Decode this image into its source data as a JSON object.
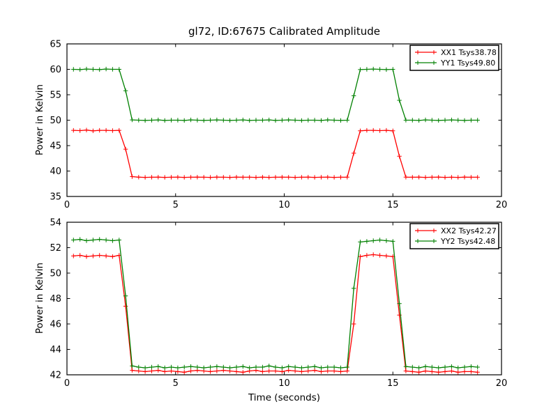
{
  "figure": {
    "background": "#ffffff",
    "frame_color": "#000000",
    "marker": "+",
    "colors": {
      "xx": "#ff0000",
      "yy": "#008000"
    }
  },
  "chart_data": [
    {
      "type": "line",
      "title": "gl72, ID:67675 Calibrated Amplitude",
      "xlabel": "",
      "ylabel": "Power in Kelvin",
      "xlim": [
        0,
        20
      ],
      "ylim": [
        35,
        65
      ],
      "xticks": [
        0,
        5,
        10,
        15,
        20
      ],
      "yticks": [
        35,
        40,
        45,
        50,
        55,
        60,
        65
      ],
      "grid": false,
      "legend_position": "upper right",
      "series": [
        {
          "id": "xx1",
          "name": "XX1 Tsys38.78",
          "color": "#ff0000",
          "marker": "+",
          "x": [
            0.3,
            0.6,
            0.9,
            1.2,
            1.5,
            1.8,
            2.1,
            2.4,
            2.7,
            3.0,
            3.3,
            3.6,
            3.9,
            4.2,
            4.5,
            4.8,
            5.1,
            5.4,
            5.7,
            6.0,
            6.3,
            6.6,
            6.9,
            7.2,
            7.5,
            7.8,
            8.1,
            8.4,
            8.7,
            9.0,
            9.3,
            9.6,
            9.9,
            10.2,
            10.5,
            10.8,
            11.1,
            11.4,
            11.7,
            12.0,
            12.3,
            12.6,
            12.9,
            13.2,
            13.5,
            13.8,
            14.1,
            14.4,
            14.7,
            15.0,
            15.3,
            15.6,
            15.9,
            16.2,
            16.5,
            16.8,
            17.1,
            17.4,
            17.7,
            18.0,
            18.3,
            18.6,
            18.9
          ],
          "y": [
            48.0,
            47.95,
            48.05,
            47.9,
            48.0,
            48.0,
            47.95,
            48.0,
            44.3,
            38.9,
            38.8,
            38.75,
            38.78,
            38.8,
            38.76,
            38.78,
            38.8,
            38.75,
            38.78,
            38.8,
            38.78,
            38.76,
            38.8,
            38.78,
            38.75,
            38.8,
            38.78,
            38.78,
            38.76,
            38.8,
            38.75,
            38.78,
            38.8,
            38.78,
            38.76,
            38.78,
            38.8,
            38.75,
            38.78,
            38.8,
            38.76,
            38.78,
            38.8,
            43.5,
            47.9,
            48.0,
            48.0,
            47.95,
            48.0,
            47.9,
            42.9,
            38.8,
            38.78,
            38.8,
            38.75,
            38.78,
            38.8,
            38.76,
            38.78,
            38.75,
            38.8,
            38.78,
            38.78
          ]
        },
        {
          "id": "yy1",
          "name": "YY1 Tsys49.80",
          "color": "#008000",
          "marker": "+",
          "x": [
            0.3,
            0.6,
            0.9,
            1.2,
            1.5,
            1.8,
            2.1,
            2.4,
            2.7,
            3.0,
            3.3,
            3.6,
            3.9,
            4.2,
            4.5,
            4.8,
            5.1,
            5.4,
            5.7,
            6.0,
            6.3,
            6.6,
            6.9,
            7.2,
            7.5,
            7.8,
            8.1,
            8.4,
            8.7,
            9.0,
            9.3,
            9.6,
            9.9,
            10.2,
            10.5,
            10.8,
            11.1,
            11.4,
            11.7,
            12.0,
            12.3,
            12.6,
            12.9,
            13.2,
            13.5,
            13.8,
            14.1,
            14.4,
            14.7,
            15.0,
            15.3,
            15.6,
            15.9,
            16.2,
            16.5,
            16.8,
            17.1,
            17.4,
            17.7,
            18.0,
            18.3,
            18.6,
            18.9
          ],
          "y": [
            60.0,
            59.95,
            60.05,
            60.0,
            59.95,
            60.05,
            60.0,
            60.0,
            55.8,
            50.05,
            50.0,
            49.95,
            50.0,
            50.05,
            49.95,
            50.0,
            50.0,
            49.95,
            50.05,
            50.0,
            49.95,
            50.0,
            50.05,
            50.0,
            49.95,
            50.0,
            50.05,
            49.95,
            50.0,
            50.0,
            50.05,
            49.95,
            50.0,
            50.05,
            50.0,
            49.95,
            50.0,
            50.0,
            49.95,
            50.05,
            50.0,
            49.95,
            50.0,
            54.8,
            59.95,
            60.0,
            60.05,
            60.0,
            59.95,
            60.0,
            53.9,
            50.0,
            50.0,
            49.95,
            50.05,
            50.0,
            49.95,
            50.0,
            50.05,
            50.0,
            49.95,
            50.0,
            50.0
          ]
        }
      ]
    },
    {
      "type": "line",
      "title": "",
      "xlabel": "Time (seconds)",
      "ylabel": "Power in Kelvin",
      "xlim": [
        0,
        20
      ],
      "ylim": [
        42,
        54
      ],
      "xticks": [
        0,
        5,
        10,
        15,
        20
      ],
      "yticks": [
        42,
        44,
        46,
        48,
        50,
        52,
        54
      ],
      "grid": false,
      "legend_position": "upper right",
      "series": [
        {
          "id": "xx2",
          "name": "XX2 Tsys42.27",
          "color": "#ff0000",
          "marker": "+",
          "x": [
            0.3,
            0.6,
            0.9,
            1.2,
            1.5,
            1.8,
            2.1,
            2.4,
            2.7,
            3.0,
            3.3,
            3.6,
            3.9,
            4.2,
            4.5,
            4.8,
            5.1,
            5.4,
            5.7,
            6.0,
            6.3,
            6.6,
            6.9,
            7.2,
            7.5,
            7.8,
            8.1,
            8.4,
            8.7,
            9.0,
            9.3,
            9.6,
            9.9,
            10.2,
            10.5,
            10.8,
            11.1,
            11.4,
            11.7,
            12.0,
            12.3,
            12.6,
            12.9,
            13.2,
            13.5,
            13.8,
            14.1,
            14.4,
            14.7,
            15.0,
            15.3,
            15.6,
            15.9,
            16.2,
            16.5,
            16.8,
            17.1,
            17.4,
            17.7,
            18.0,
            18.3,
            18.6,
            18.9
          ],
          "y": [
            51.35,
            51.4,
            51.3,
            51.35,
            51.4,
            51.35,
            51.3,
            51.4,
            47.4,
            42.35,
            42.3,
            42.25,
            42.3,
            42.35,
            42.25,
            42.3,
            42.25,
            42.2,
            42.3,
            42.35,
            42.3,
            42.25,
            42.3,
            42.35,
            42.3,
            42.25,
            42.2,
            42.3,
            42.35,
            42.25,
            42.3,
            42.3,
            42.25,
            42.35,
            42.3,
            42.25,
            42.3,
            42.35,
            42.25,
            42.3,
            42.3,
            42.25,
            42.3,
            46.0,
            51.3,
            51.4,
            51.45,
            51.4,
            51.35,
            51.3,
            46.7,
            42.3,
            42.25,
            42.2,
            42.3,
            42.25,
            42.2,
            42.25,
            42.3,
            42.2,
            42.25,
            42.25,
            42.2
          ]
        },
        {
          "id": "yy2",
          "name": "YY2 Tsys42.48",
          "color": "#008000",
          "marker": "+",
          "x": [
            0.3,
            0.6,
            0.9,
            1.2,
            1.5,
            1.8,
            2.1,
            2.4,
            2.7,
            3.0,
            3.3,
            3.6,
            3.9,
            4.2,
            4.5,
            4.8,
            5.1,
            5.4,
            5.7,
            6.0,
            6.3,
            6.6,
            6.9,
            7.2,
            7.5,
            7.8,
            8.1,
            8.4,
            8.7,
            9.0,
            9.3,
            9.6,
            9.9,
            10.2,
            10.5,
            10.8,
            11.1,
            11.4,
            11.7,
            12.0,
            12.3,
            12.6,
            12.9,
            13.2,
            13.5,
            13.8,
            14.1,
            14.4,
            14.7,
            15.0,
            15.3,
            15.6,
            15.9,
            16.2,
            16.5,
            16.8,
            17.1,
            17.4,
            17.7,
            18.0,
            18.3,
            18.6,
            18.9
          ],
          "y": [
            52.6,
            52.65,
            52.55,
            52.6,
            52.65,
            52.6,
            52.55,
            52.6,
            48.2,
            42.7,
            42.6,
            42.55,
            42.6,
            42.65,
            42.55,
            42.6,
            42.55,
            42.6,
            42.65,
            42.6,
            42.55,
            42.6,
            42.65,
            42.6,
            42.55,
            42.6,
            42.65,
            42.55,
            42.6,
            42.6,
            42.7,
            42.6,
            42.55,
            42.65,
            42.6,
            42.55,
            42.6,
            42.65,
            42.55,
            42.6,
            42.6,
            42.55,
            42.6,
            48.8,
            52.45,
            52.5,
            52.55,
            52.6,
            52.55,
            52.5,
            47.6,
            42.65,
            42.6,
            42.55,
            42.65,
            42.6,
            42.55,
            42.6,
            42.65,
            42.55,
            42.6,
            42.65,
            42.6
          ]
        }
      ]
    }
  ]
}
